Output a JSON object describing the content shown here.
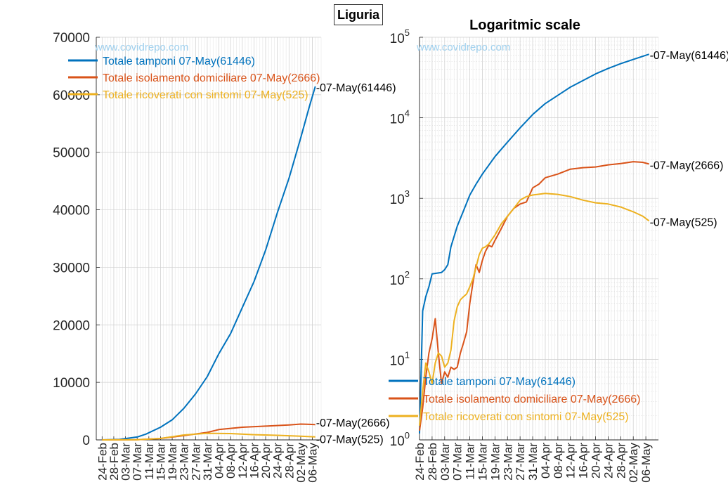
{
  "figure": {
    "title": "Liguria",
    "watermark": "www.covidrepo.com"
  },
  "chart_data": [
    {
      "type": "line",
      "title": "",
      "xlabel": "",
      "ylabel": "",
      "yscale": "linear",
      "ylim": [
        0,
        70000
      ],
      "yticks": [
        0,
        10000,
        20000,
        30000,
        40000,
        50000,
        60000,
        70000
      ],
      "ytick_labels": [
        "0",
        "10000",
        "20000",
        "30000",
        "40000",
        "50000",
        "60000",
        "70000"
      ],
      "xlim": [
        "2020-02-22",
        "2020-05-09"
      ],
      "xtick_labels": [
        "24-Feb",
        "28-Feb",
        "03-Mar",
        "07-Mar",
        "11-Mar",
        "15-Mar",
        "19-Mar",
        "23-Mar",
        "27-Mar",
        "31-Mar",
        "04-Apr",
        "08-Apr",
        "12-Apr",
        "16-Apr",
        "20-Apr",
        "24-Apr",
        "28-Apr",
        "02-May",
        "06-May"
      ],
      "grid": true,
      "legend_position": "top-left",
      "series": [
        {
          "name": "Totale tamponi 07-May(61446)",
          "color": "#0072BD",
          "end_label": "-07-May(61446)",
          "points": [
            [
              "2020-02-24",
              0
            ],
            [
              "2020-03-01",
              100
            ],
            [
              "2020-03-07",
              500
            ],
            [
              "2020-03-10",
              1000
            ],
            [
              "2020-03-15",
              2200
            ],
            [
              "2020-03-19",
              3500
            ],
            [
              "2020-03-23",
              5500
            ],
            [
              "2020-03-27",
              8000
            ],
            [
              "2020-03-31",
              11000
            ],
            [
              "2020-04-04",
              15000
            ],
            [
              "2020-04-08",
              18500
            ],
            [
              "2020-04-12",
              23000
            ],
            [
              "2020-04-16",
              27500
            ],
            [
              "2020-04-20",
              33000
            ],
            [
              "2020-04-24",
              39500
            ],
            [
              "2020-04-28",
              45500
            ],
            [
              "2020-05-02",
              52500
            ],
            [
              "2020-05-05",
              58000
            ],
            [
              "2020-05-07",
              61446
            ]
          ]
        },
        {
          "name": "Totale isolamento domiciliare 07-May(2666)",
          "color": "#D95319",
          "end_label": "-07-May(2666)",
          "points": [
            [
              "2020-02-24",
              0
            ],
            [
              "2020-03-07",
              20
            ],
            [
              "2020-03-15",
              250
            ],
            [
              "2020-03-23",
              750
            ],
            [
              "2020-03-31",
              1300
            ],
            [
              "2020-04-04",
              1800
            ],
            [
              "2020-04-08",
              2000
            ],
            [
              "2020-04-12",
              2200
            ],
            [
              "2020-04-20",
              2400
            ],
            [
              "2020-04-28",
              2600
            ],
            [
              "2020-05-02",
              2750
            ],
            [
              "2020-05-05",
              2700
            ],
            [
              "2020-05-07",
              2666
            ]
          ]
        },
        {
          "name": "Totale ricoverati con sintomi 07-May(525)",
          "color": "#EDB120",
          "end_label": "-07-May(525)",
          "points": [
            [
              "2020-02-24",
              0
            ],
            [
              "2020-03-07",
              40
            ],
            [
              "2020-03-15",
              250
            ],
            [
              "2020-03-23",
              850
            ],
            [
              "2020-03-31",
              1150
            ],
            [
              "2020-04-08",
              1100
            ],
            [
              "2020-04-16",
              900
            ],
            [
              "2020-04-24",
              800
            ],
            [
              "2020-05-02",
              650
            ],
            [
              "2020-05-07",
              525
            ]
          ]
        }
      ]
    },
    {
      "type": "line",
      "title": "Logaritmic scale",
      "xlabel": "",
      "ylabel": "",
      "yscale": "log",
      "ylim": [
        1,
        100000
      ],
      "ytick_bases": [
        "10",
        "10",
        "10",
        "10",
        "10",
        "10"
      ],
      "ytick_exponents": [
        "0",
        "1",
        "2",
        "3",
        "4",
        "5"
      ],
      "xlim": [
        "2020-02-24",
        "2020-05-10"
      ],
      "xtick_labels": [
        "24-Feb",
        "28-Feb",
        "03-Mar",
        "07-Mar",
        "11-Mar",
        "15-Mar",
        "19-Mar",
        "23-Mar",
        "27-Mar",
        "31-Mar",
        "04-Apr",
        "08-Apr",
        "12-Apr",
        "16-Apr",
        "20-Apr",
        "24-Apr",
        "28-Apr",
        "02-May",
        "06-May"
      ],
      "grid": true,
      "legend_position": "bottom-left",
      "series": [
        {
          "name": "Totale tamponi 07-May(61446)",
          "color": "#0072BD",
          "end_label": "-07-May(61446)",
          "points": [
            [
              "2020-02-24",
              1.2
            ],
            [
              "2020-02-25",
              40
            ],
            [
              "2020-02-26",
              60
            ],
            [
              "2020-02-27",
              80
            ],
            [
              "2020-02-28",
              115
            ],
            [
              "2020-03-02",
              120
            ],
            [
              "2020-03-03",
              130
            ],
            [
              "2020-03-04",
              150
            ],
            [
              "2020-03-05",
              250
            ],
            [
              "2020-03-07",
              450
            ],
            [
              "2020-03-09",
              700
            ],
            [
              "2020-03-11",
              1100
            ],
            [
              "2020-03-13",
              1500
            ],
            [
              "2020-03-15",
              2000
            ],
            [
              "2020-03-19",
              3300
            ],
            [
              "2020-03-23",
              5000
            ],
            [
              "2020-03-27",
              7500
            ],
            [
              "2020-03-31",
              11000
            ],
            [
              "2020-04-04",
              15000
            ],
            [
              "2020-04-08",
              19000
            ],
            [
              "2020-04-12",
              24000
            ],
            [
              "2020-04-16",
              29000
            ],
            [
              "2020-04-20",
              35000
            ],
            [
              "2020-04-24",
              41000
            ],
            [
              "2020-04-28",
              47000
            ],
            [
              "2020-05-02",
              53000
            ],
            [
              "2020-05-07",
              61446
            ]
          ]
        },
        {
          "name": "Totale isolamento domiciliare 07-May(2666)",
          "color": "#D95319",
          "end_label": "-07-May(2666)",
          "points": [
            [
              "2020-02-24",
              1.3
            ],
            [
              "2020-02-25",
              2.5
            ],
            [
              "2020-02-26",
              6
            ],
            [
              "2020-02-27",
              12
            ],
            [
              "2020-02-28",
              18
            ],
            [
              "2020-02-29",
              32
            ],
            [
              "2020-03-01",
              12
            ],
            [
              "2020-03-02",
              5
            ],
            [
              "2020-03-03",
              7
            ],
            [
              "2020-03-04",
              6
            ],
            [
              "2020-03-05",
              8
            ],
            [
              "2020-03-06",
              7.5
            ],
            [
              "2020-03-07",
              8
            ],
            [
              "2020-03-08",
              12
            ],
            [
              "2020-03-09",
              16
            ],
            [
              "2020-03-10",
              22
            ],
            [
              "2020-03-11",
              50
            ],
            [
              "2020-03-12",
              90
            ],
            [
              "2020-03-13",
              150
            ],
            [
              "2020-03-14",
              120
            ],
            [
              "2020-03-15",
              170
            ],
            [
              "2020-03-16",
              220
            ],
            [
              "2020-03-17",
              260
            ],
            [
              "2020-03-18",
              250
            ],
            [
              "2020-03-19",
              300
            ],
            [
              "2020-03-21",
              420
            ],
            [
              "2020-03-23",
              600
            ],
            [
              "2020-03-25",
              750
            ],
            [
              "2020-03-27",
              850
            ],
            [
              "2020-03-29",
              900
            ],
            [
              "2020-03-31",
              1350
            ],
            [
              "2020-04-02",
              1500
            ],
            [
              "2020-04-04",
              1800
            ],
            [
              "2020-04-08",
              2000
            ],
            [
              "2020-04-12",
              2300
            ],
            [
              "2020-04-16",
              2400
            ],
            [
              "2020-04-20",
              2450
            ],
            [
              "2020-04-24",
              2600
            ],
            [
              "2020-04-28",
              2700
            ],
            [
              "2020-05-02",
              2850
            ],
            [
              "2020-05-05",
              2800
            ],
            [
              "2020-05-07",
              2666
            ]
          ]
        },
        {
          "name": "Totale ricoverati con sintomi 07-May(525)",
          "color": "#EDB120",
          "end_label": "-07-May(525)",
          "points": [
            [
              "2020-02-24",
              1.5
            ],
            [
              "2020-02-25",
              4
            ],
            [
              "2020-02-26",
              9
            ],
            [
              "2020-02-27",
              7
            ],
            [
              "2020-02-28",
              5
            ],
            [
              "2020-02-29",
              9
            ],
            [
              "2020-03-01",
              12
            ],
            [
              "2020-03-02",
              11
            ],
            [
              "2020-03-03",
              8
            ],
            [
              "2020-03-04",
              9
            ],
            [
              "2020-03-05",
              13
            ],
            [
              "2020-03-06",
              30
            ],
            [
              "2020-03-07",
              45
            ],
            [
              "2020-03-08",
              55
            ],
            [
              "2020-03-09",
              60
            ],
            [
              "2020-03-10",
              65
            ],
            [
              "2020-03-11",
              80
            ],
            [
              "2020-03-12",
              100
            ],
            [
              "2020-03-13",
              140
            ],
            [
              "2020-03-14",
              200
            ],
            [
              "2020-03-15",
              240
            ],
            [
              "2020-03-16",
              250
            ],
            [
              "2020-03-17",
              270
            ],
            [
              "2020-03-19",
              350
            ],
            [
              "2020-03-21",
              480
            ],
            [
              "2020-03-23",
              600
            ],
            [
              "2020-03-25",
              750
            ],
            [
              "2020-03-27",
              950
            ],
            [
              "2020-03-29",
              1050
            ],
            [
              "2020-03-31",
              1100
            ],
            [
              "2020-04-04",
              1150
            ],
            [
              "2020-04-08",
              1120
            ],
            [
              "2020-04-12",
              1050
            ],
            [
              "2020-04-16",
              950
            ],
            [
              "2020-04-20",
              880
            ],
            [
              "2020-04-24",
              850
            ],
            [
              "2020-04-28",
              780
            ],
            [
              "2020-05-02",
              680
            ],
            [
              "2020-05-05",
              600
            ],
            [
              "2020-05-07",
              525
            ]
          ]
        }
      ]
    }
  ]
}
